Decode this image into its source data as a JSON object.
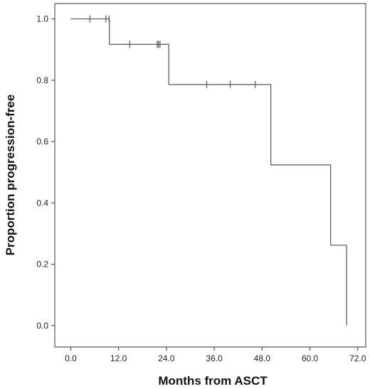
{
  "chart_data": {
    "type": "line",
    "subtype": "kaplan-meier",
    "xlabel": "Months from ASCT",
    "ylabel": "Proportion progression-free",
    "xlim": [
      -4,
      74
    ],
    "ylim": [
      -0.07,
      1.05
    ],
    "xticks": [
      0,
      12,
      24,
      36,
      48,
      60,
      72
    ],
    "xtick_labels": [
      "0.0",
      "12.0",
      "24.0",
      "36.0",
      "48.0",
      "60.0",
      "72.0"
    ],
    "yticks": [
      0,
      0.2,
      0.4,
      0.6,
      0.8,
      1.0
    ],
    "ytick_labels": [
      "0.0",
      "0.2",
      "0.4",
      "0.6",
      "0.8",
      "1.0"
    ],
    "grid": false,
    "series": [
      {
        "step_x": [
          0,
          9.7,
          24.6,
          50.2,
          65.2,
          69.2,
          69.2
        ],
        "step_y": [
          1.0,
          0.917,
          0.786,
          0.524,
          0.262,
          0.0,
          0.0
        ],
        "censored": [
          {
            "x": 4.8,
            "y": 1.0
          },
          {
            "x": 8.8,
            "y": 1.0
          },
          {
            "x": 9.6,
            "y": 1.0
          },
          {
            "x": 14.8,
            "y": 0.917
          },
          {
            "x": 21.7,
            "y": 0.917
          },
          {
            "x": 22.0,
            "y": 0.917
          },
          {
            "x": 22.4,
            "y": 0.917
          },
          {
            "x": 34.1,
            "y": 0.786
          },
          {
            "x": 40.0,
            "y": 0.786
          },
          {
            "x": 46.3,
            "y": 0.786
          }
        ]
      }
    ],
    "colors": {
      "line": "#555555",
      "axis": "#333333"
    }
  }
}
